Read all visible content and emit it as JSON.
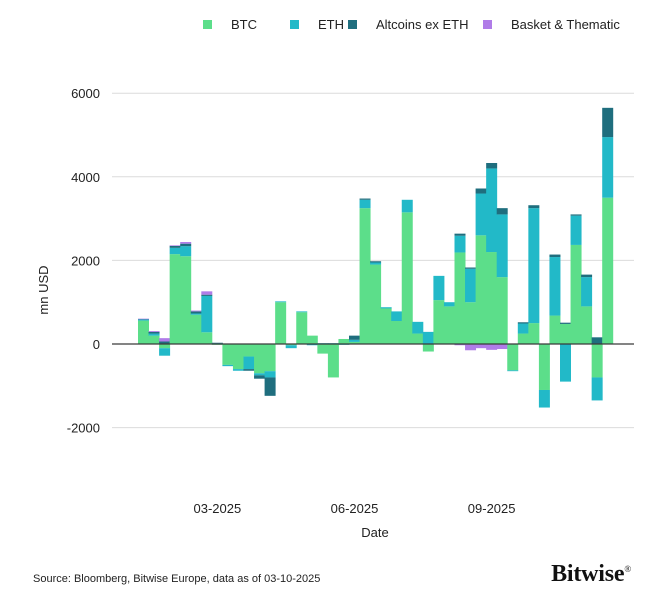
{
  "chart_data": {
    "type": "bar",
    "stacked": true,
    "title": "",
    "xlabel": "Date",
    "ylabel": "mn USD",
    "ylim": [
      -3200,
      6000
    ],
    "yticks": [
      -2000,
      0,
      2000,
      4000,
      6000
    ],
    "ytick_labels": [
      "-2000",
      "0",
      "2000",
      "4000",
      "6000"
    ],
    "xtick_labels": [
      {
        "label": "03-2025",
        "week_index": 7
      },
      {
        "label": "06-2025",
        "week_index": 20
      },
      {
        "label": "09-2025",
        "week_index": 33
      }
    ],
    "grid": true,
    "legend_position": "top-right",
    "series": [
      {
        "name": "BTC",
        "color": "#5CDE8A",
        "values": [
          560,
          200,
          -100,
          2150,
          2100,
          700,
          280,
          -20,
          -500,
          -600,
          -300,
          -700,
          -650,
          1000,
          -30,
          760,
          200,
          -230,
          -800,
          120,
          50,
          3250,
          1900,
          850,
          550,
          3150,
          250,
          -180,
          1050,
          900,
          2190,
          1000,
          2600,
          2200,
          1600,
          -630,
          250,
          500,
          -1100,
          680,
          480,
          2370,
          900,
          -800,
          3500
        ]
      },
      {
        "name": "ETH",
        "color": "#22B9C8",
        "values": [
          30,
          50,
          -180,
          150,
          240,
          30,
          870,
          20,
          -30,
          -40,
          -300,
          -50,
          -150,
          20,
          -70,
          20,
          -30,
          20,
          20,
          -20,
          50,
          200,
          50,
          30,
          230,
          300,
          280,
          290,
          580,
          100,
          400,
          800,
          1000,
          2000,
          1500,
          -20,
          240,
          2750,
          -420,
          1400,
          -900,
          700,
          700,
          -550,
          1450
        ]
      },
      {
        "name": "Altcoins ex ETH",
        "color": "#1F6E7E",
        "values": [
          10,
          40,
          60,
          50,
          60,
          50,
          30,
          10,
          0,
          0,
          -40,
          -80,
          -440,
          0,
          10,
          0,
          0,
          0,
          0,
          0,
          100,
          30,
          30,
          0,
          0,
          0,
          0,
          0,
          0,
          0,
          50,
          30,
          120,
          130,
          150,
          0,
          30,
          70,
          0,
          60,
          30,
          30,
          60,
          160,
          700
        ]
      },
      {
        "name": "Basket & Thematic",
        "color": "#B07CE8",
        "values": [
          5,
          20,
          80,
          10,
          40,
          20,
          80,
          0,
          0,
          0,
          0,
          0,
          0,
          0,
          0,
          0,
          0,
          0,
          0,
          0,
          0,
          0,
          0,
          0,
          0,
          0,
          0,
          0,
          0,
          0,
          -30,
          -150,
          -100,
          -140,
          -120,
          0,
          0,
          0,
          0,
          0,
          0,
          0,
          0,
          0,
          0
        ]
      }
    ]
  },
  "source_text": "Source: Bloomberg, Bitwise Europe, data as of  03-10-2025",
  "brand": {
    "name": "Bitwise",
    "mark": "®"
  }
}
